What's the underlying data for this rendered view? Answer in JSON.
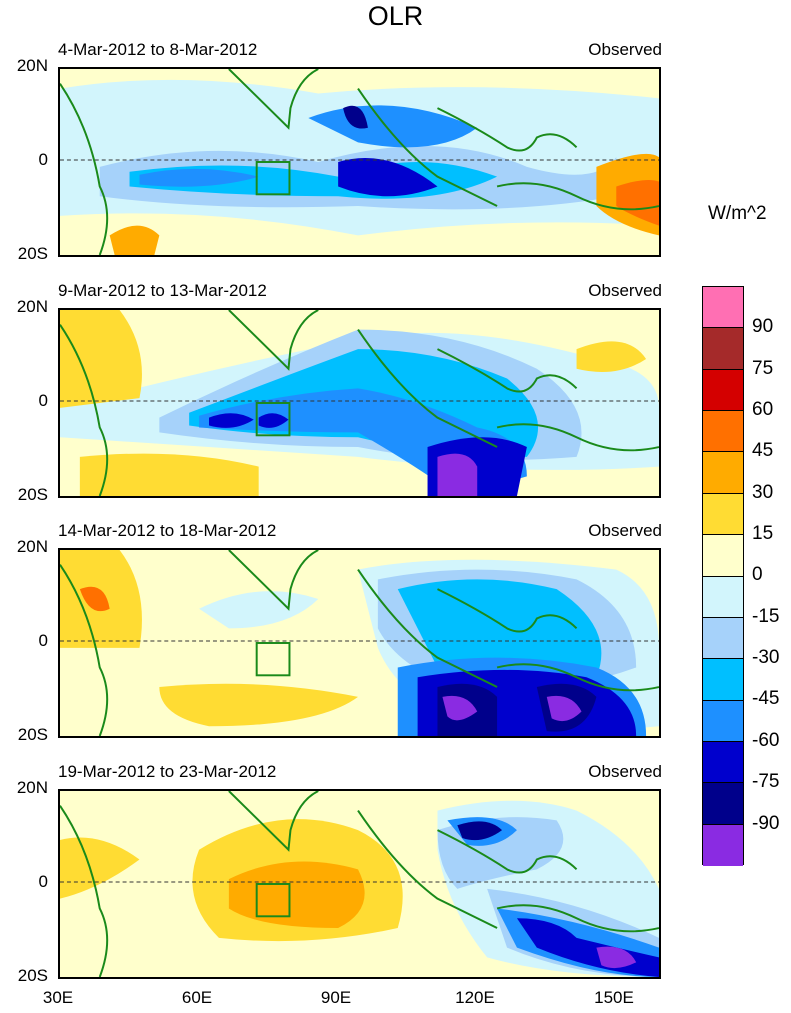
{
  "title": "OLR",
  "units": "W/m^2",
  "panels": [
    {
      "dates": "4-Mar-2012 to 8-Mar-2012",
      "source": "Observed"
    },
    {
      "dates": "9-Mar-2012 to 13-Mar-2012",
      "source": "Observed"
    },
    {
      "dates": "14-Mar-2012 to 18-Mar-2012",
      "source": "Observed"
    },
    {
      "dates": "19-Mar-2012 to 23-Mar-2012",
      "source": "Observed"
    }
  ],
  "lat_labels": [
    "20N",
    "0",
    "20S"
  ],
  "lon_labels": [
    "30E",
    "60E",
    "90E",
    "120E",
    "150E"
  ],
  "colorbar": {
    "labels": [
      "90",
      "75",
      "60",
      "45",
      "30",
      "15",
      "0",
      "-15",
      "-30",
      "-45",
      "-60",
      "-75",
      "-90"
    ],
    "colors": [
      "#ff6fb3",
      "#a52a2a",
      "#d40000",
      "#ff7000",
      "#ffab00",
      "#ffdc33",
      "#ffffcc",
      "#d2f5fc",
      "#a6d2fa",
      "#00bfff",
      "#1e90ff",
      "#0000cd",
      "#00008b",
      "#8a2be2"
    ]
  },
  "colors": {
    "coast": "#1a8a1a",
    "box": "#1a8a1a"
  }
}
